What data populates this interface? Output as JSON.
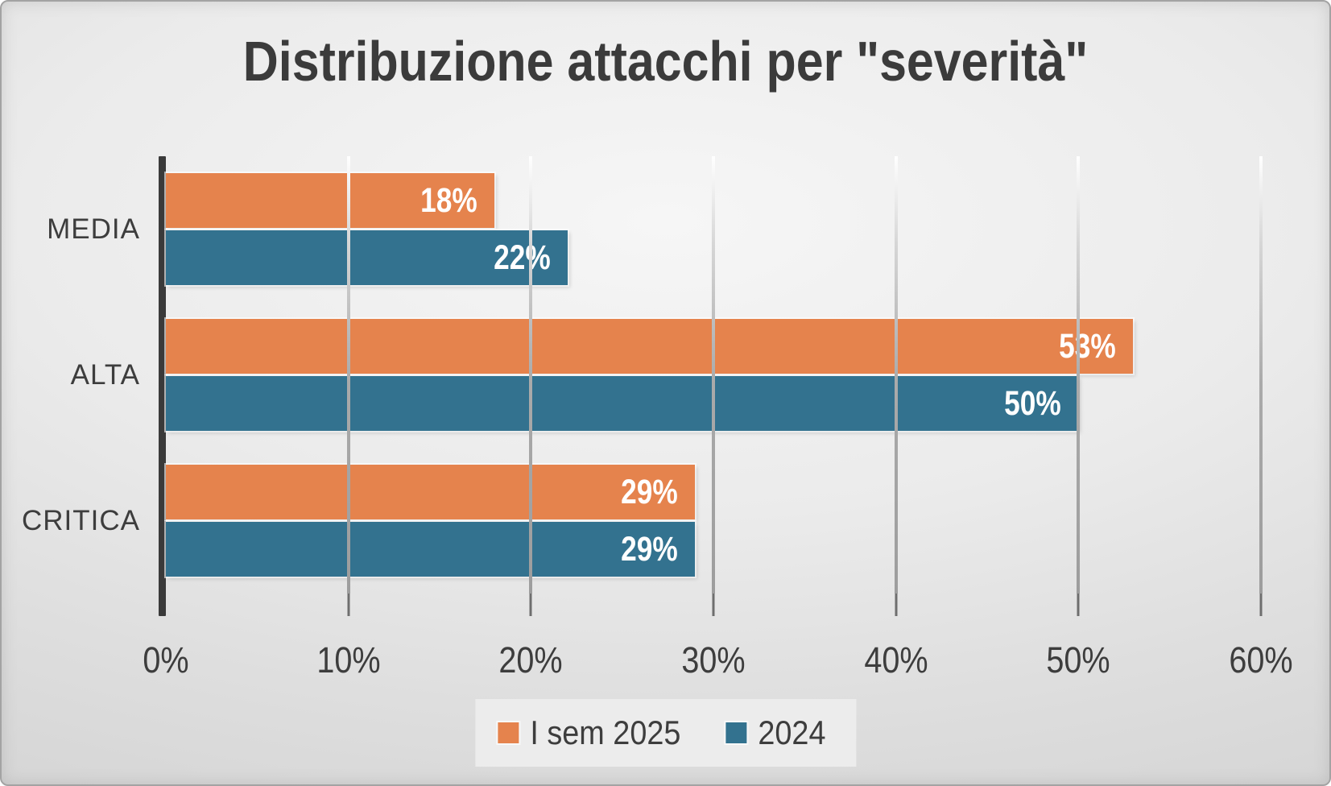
{
  "chart_data": {
    "type": "bar",
    "orientation": "horizontal",
    "title": "Distribuzione attacchi per \"severità\"",
    "categories": [
      "MEDIA",
      "ALTA",
      "CRITICA"
    ],
    "series": [
      {
        "name": "I sem 2025",
        "color": "#E5834D",
        "values": [
          18,
          53,
          29
        ]
      },
      {
        "name": "2024",
        "color": "#33728F",
        "values": [
          22,
          50,
          29
        ]
      }
    ],
    "x_tick_labels": [
      "0%",
      "10%",
      "20%",
      "30%",
      "40%",
      "50%",
      "60%"
    ],
    "xlim": [
      0,
      60
    ],
    "data_label_suffix": "%",
    "grid": true,
    "legend_position": "bottom"
  },
  "colors": {
    "series_1": "#E5834D",
    "series_2": "#33728F",
    "text": "#3D3D3D",
    "axis": "#3A3A3A",
    "gridline": "#A3A3A3",
    "bar_label": "#FFFFFF",
    "legend_background": "#EFEFEF"
  }
}
